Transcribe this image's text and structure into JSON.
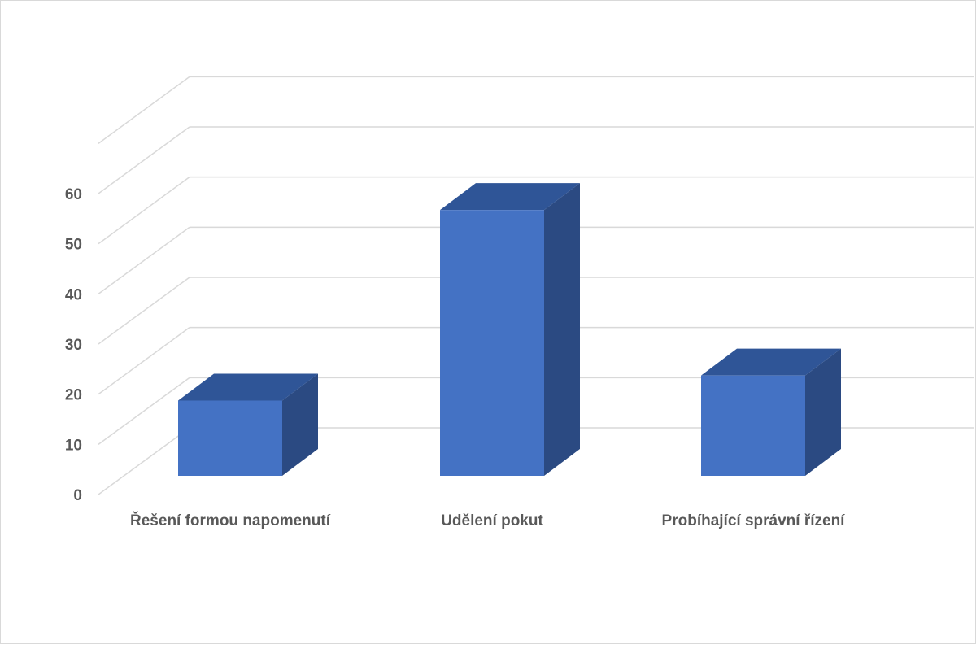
{
  "chart_data": {
    "type": "bar",
    "style": "3d-column",
    "categories": [
      "Řešení formou napomenutí",
      "Udělení pokut",
      "Probíhající správní řízení"
    ],
    "values": [
      15,
      53,
      20
    ],
    "ylim": [
      0,
      60
    ],
    "ytick_step": 10,
    "grid": true,
    "legend": "none",
    "colors": {
      "front": "#4472C4",
      "top": "#2F5597",
      "side": "#2B4A82",
      "grid": "#d9d9d9",
      "labels": "#595959"
    }
  }
}
